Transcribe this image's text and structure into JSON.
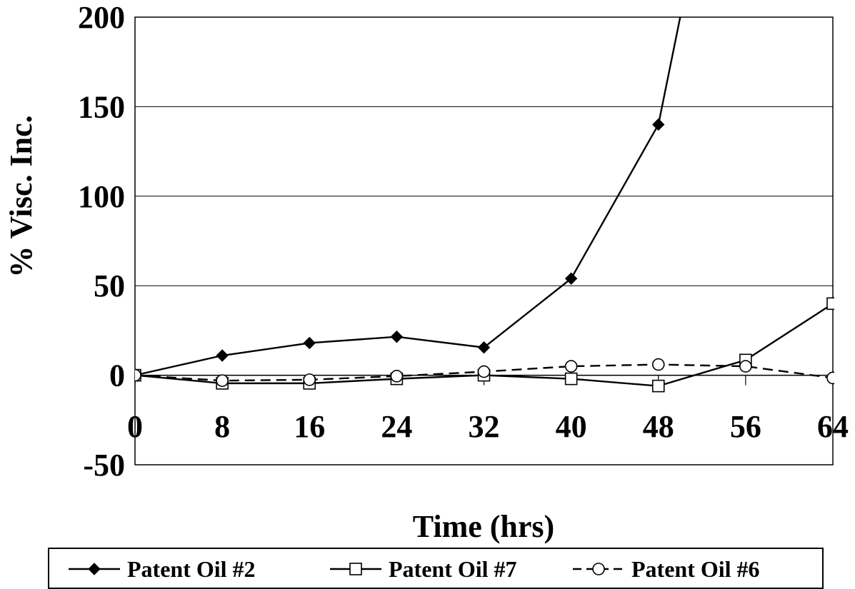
{
  "chart_data": {
    "type": "line",
    "title": "",
    "xlabel": "Time (hrs)",
    "ylabel": "% Visc. Inc.",
    "x": [
      0,
      8,
      16,
      24,
      32,
      40,
      48,
      56,
      64
    ],
    "x_tick_labels": [
      "0",
      "8",
      "16",
      "24",
      "32",
      "40",
      "48",
      "56",
      "64"
    ],
    "y_tick_labels": [
      "200",
      "150",
      "100",
      "50",
      "0",
      "-50"
    ],
    "xlim": [
      0,
      64
    ],
    "ylim": [
      -50,
      200
    ],
    "grid": "horizontal",
    "legend_position": "bottom",
    "series": [
      {
        "name": "Patent Oil #2",
        "marker": "filled-diamond",
        "line": "solid",
        "color": "#000000",
        "x": [
          0,
          8,
          16,
          24,
          32,
          40,
          48,
          50
        ],
        "values": [
          0,
          11,
          18,
          21.5,
          15.5,
          54,
          140,
          200
        ]
      },
      {
        "name": "Patent Oil #7",
        "marker": "open-square",
        "line": "solid",
        "color": "#000000",
        "x": [
          0,
          8,
          16,
          24,
          32,
          40,
          48,
          56,
          64
        ],
        "values": [
          0,
          -4.5,
          -4.5,
          -2,
          0,
          -2,
          -6,
          8.5,
          40
        ]
      },
      {
        "name": "Patent Oil #6",
        "marker": "open-circle",
        "line": "dashed",
        "color": "#000000",
        "x": [
          0,
          8,
          16,
          24,
          32,
          40,
          48,
          56,
          64
        ],
        "values": [
          0,
          -3,
          -2.5,
          -0.5,
          2,
          5,
          6,
          5,
          -1.5
        ]
      }
    ]
  }
}
